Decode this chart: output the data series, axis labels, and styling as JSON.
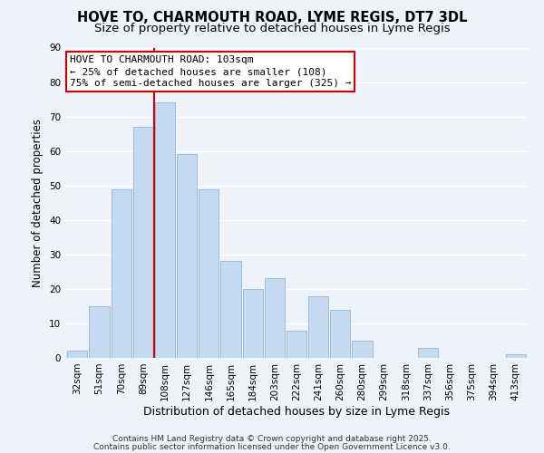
{
  "title": "HOVE TO, CHARMOUTH ROAD, LYME REGIS, DT7 3DL",
  "subtitle": "Size of property relative to detached houses in Lyme Regis",
  "xlabel": "Distribution of detached houses by size in Lyme Regis",
  "ylabel": "Number of detached properties",
  "bar_color": "#c5d9f1",
  "bar_edge_color": "#92b4d8",
  "bg_color": "#eef2fb",
  "grid_color": "#ffffff",
  "categories": [
    "32sqm",
    "51sqm",
    "70sqm",
    "89sqm",
    "108sqm",
    "127sqm",
    "146sqm",
    "165sqm",
    "184sqm",
    "203sqm",
    "222sqm",
    "241sqm",
    "260sqm",
    "280sqm",
    "299sqm",
    "318sqm",
    "337sqm",
    "356sqm",
    "375sqm",
    "394sqm",
    "413sqm"
  ],
  "values": [
    2,
    15,
    49,
    67,
    74,
    59,
    49,
    28,
    20,
    23,
    8,
    18,
    14,
    5,
    0,
    0,
    3,
    0,
    0,
    0,
    1
  ],
  "ylim": [
    0,
    90
  ],
  "yticks": [
    0,
    10,
    20,
    30,
    40,
    50,
    60,
    70,
    80,
    90
  ],
  "vline_color": "#cc0000",
  "annotation_line1": "HOVE TO CHARMOUTH ROAD: 103sqm",
  "annotation_line2": "← 25% of detached houses are smaller (108)",
  "annotation_line3": "75% of semi-detached houses are larger (325) →",
  "annotation_box_facecolor": "#ffffff",
  "annotation_box_edgecolor": "#cc0000",
  "footer1": "Contains HM Land Registry data © Crown copyright and database right 2025.",
  "footer2": "Contains public sector information licensed under the Open Government Licence v3.0.",
  "title_fontsize": 10.5,
  "subtitle_fontsize": 9.5,
  "xlabel_fontsize": 9,
  "ylabel_fontsize": 8.5,
  "tick_fontsize": 7.5,
  "annotation_fontsize": 8,
  "footer_fontsize": 6.5
}
